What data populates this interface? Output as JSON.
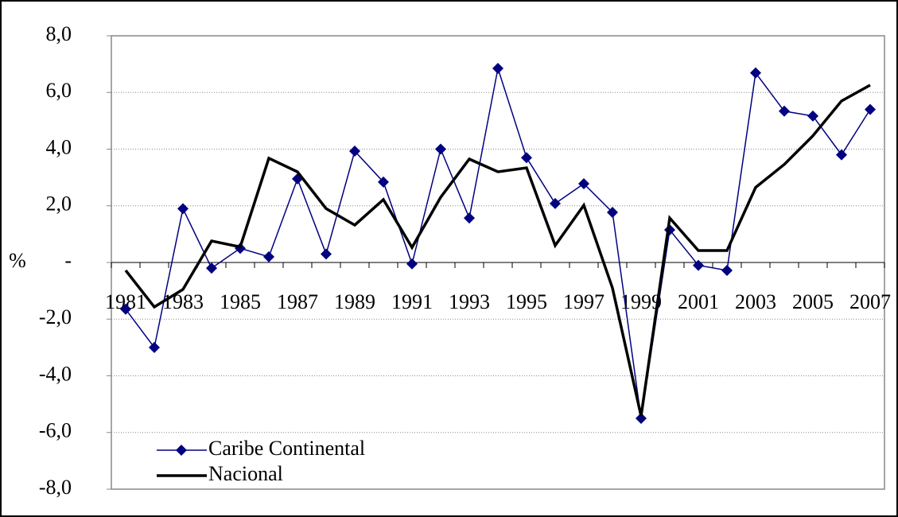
{
  "chart_data": {
    "type": "line",
    "y_label": "%",
    "categories": [
      "1981",
      null,
      "1983",
      null,
      "1985",
      null,
      "1987",
      null,
      "1989",
      null,
      "1991",
      null,
      "1993",
      null,
      "1995",
      null,
      "1997",
      null,
      "1999",
      null,
      "2001",
      null,
      "2003",
      null,
      "2005",
      null,
      "2007"
    ],
    "series": [
      {
        "name": "Caribe Continental",
        "color": "#000080",
        "marker": "diamond",
        "values": [
          -1.65,
          -3.0,
          1.9,
          -0.2,
          0.5,
          0.2,
          2.95,
          0.3,
          3.93,
          2.84,
          -0.05,
          4.0,
          1.57,
          6.85,
          3.7,
          2.08,
          2.78,
          1.77,
          -5.5,
          1.15,
          -0.1,
          -0.28,
          6.69,
          5.34,
          5.17,
          3.8,
          5.4
        ]
      },
      {
        "name": "Nacional",
        "color": "#000000",
        "values": [
          -0.28,
          -1.57,
          -0.95,
          0.76,
          0.55,
          3.68,
          3.2,
          1.9,
          1.32,
          2.22,
          0.53,
          2.3,
          3.65,
          3.2,
          3.34,
          0.6,
          2.02,
          -0.9,
          -5.42,
          1.57,
          0.42,
          0.42,
          2.65,
          3.46,
          4.47,
          5.7,
          6.26
        ]
      }
    ],
    "ylim": [
      -8,
      8
    ],
    "yticks": [
      {
        "value": -8,
        "label": "-8,0"
      },
      {
        "value": -6,
        "label": "-6,0"
      },
      {
        "value": -4,
        "label": "-4,0"
      },
      {
        "value": -2,
        "label": "-2,0"
      },
      {
        "value": 0,
        "label": "-"
      },
      {
        "value": 2,
        "label": "2,0"
      },
      {
        "value": 4,
        "label": "4,0"
      },
      {
        "value": 6,
        "label": "6,0"
      },
      {
        "value": 8,
        "label": "8,0"
      }
    ],
    "grid": true,
    "legend": "lower left"
  }
}
